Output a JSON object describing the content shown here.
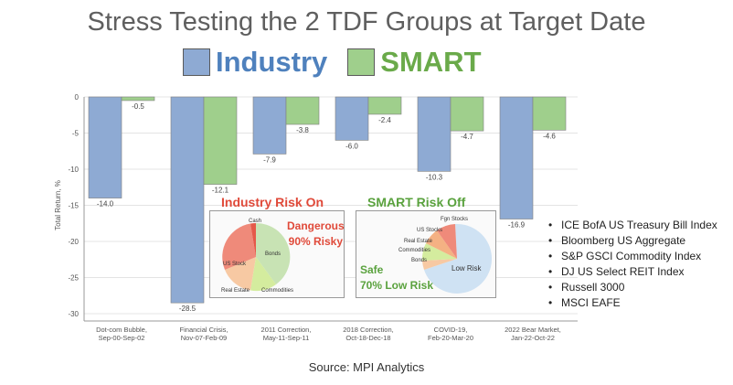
{
  "title": "Stress Testing the 2 TDF Groups at Target Date",
  "legend": [
    {
      "label": "Industry",
      "color": "#8eaad3",
      "text_color": "#4f81bd"
    },
    {
      "label": "SMART",
      "color": "#9fcf8c",
      "text_color": "#6aaa4a"
    }
  ],
  "chart_data": {
    "type": "bar",
    "categories": [
      [
        "Dot-com Bubble,",
        "Sep-00-Sep-02"
      ],
      [
        "Financial Crisis,",
        "Nov-07-Feb-09"
      ],
      [
        "2011 Correction,",
        "May-11-Sep-11"
      ],
      [
        "2018 Correction,",
        "Oct-18-Dec-18"
      ],
      [
        "COVID-19,",
        "Feb-20-Mar-20"
      ],
      [
        "2022 Bear Market,",
        "Jan-22-Oct-22"
      ]
    ],
    "series": [
      {
        "name": "Industry",
        "values": [
          -14.0,
          -28.5,
          -7.9,
          -6.0,
          -10.3,
          -16.9
        ],
        "labels": [
          "-14.0",
          "-28.5",
          "-7.9",
          "-6.0",
          "-10.3",
          "-16.9"
        ]
      },
      {
        "name": "SMART",
        "values": [
          -0.5,
          -12.1,
          -3.8,
          -2.4,
          -4.7,
          -4.6
        ],
        "labels": [
          "-0.5",
          "-12.1",
          "-3.8",
          "-2.4",
          "-4.7",
          "-4.6"
        ]
      }
    ],
    "ylabel": "Total Return, %",
    "ylim": [
      -30,
      0
    ],
    "yticks": [
      0,
      -5,
      -10,
      -15,
      -20,
      -25,
      -30
    ]
  },
  "annotations": {
    "industry": {
      "title": "Industry Risk On",
      "note_line1": "Dangerous",
      "note_line2": "90% Risky",
      "pie_labels": {
        "cash": "Cash",
        "us_stock": "US Stock",
        "bonds": "Bonds",
        "real_estate": "Real Estate",
        "commodities": "Commodities"
      }
    },
    "smart": {
      "title": "SMART Risk Off",
      "note_line1": "Safe",
      "note_line2": "70% Low Risk",
      "pie_labels": {
        "fgn_stocks": "Fgn Stocks",
        "us_stocks": "US Stocks",
        "real_estate": "Real Estate",
        "commodities": "Commodities",
        "bonds": "Bonds",
        "low_risk": "Low Risk"
      }
    }
  },
  "index_list": [
    "ICE BofA US Treasury Bill Index",
    "Bloomberg US Aggregate",
    "S&P GSCI Commodity Index",
    "DJ US Select REIT Index",
    "Russell 3000",
    "MSCI EAFE"
  ],
  "source": "Source: MPI Analytics"
}
